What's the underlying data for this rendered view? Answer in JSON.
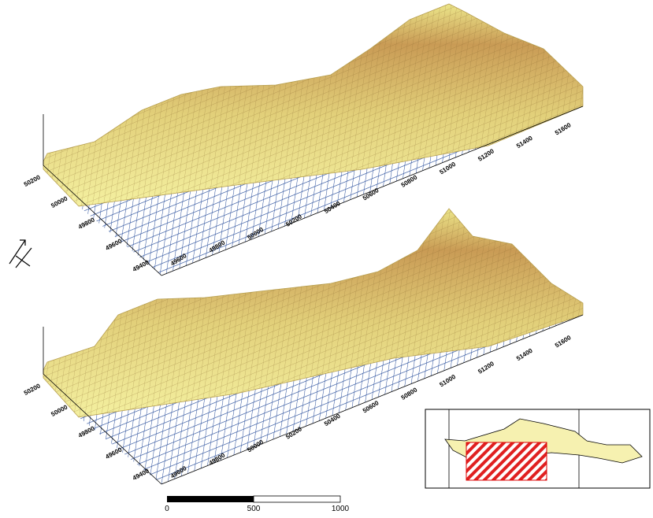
{
  "panels": [
    {
      "long_axis_labels": [
        49600,
        49800,
        50000,
        50200,
        50400,
        50600,
        50800,
        51000,
        51200,
        51400,
        51600
      ],
      "short_axis_labels": [
        50200,
        50000,
        49800,
        49600,
        49400
      ]
    },
    {
      "long_axis_labels": [
        49600,
        49800,
        50000,
        50200,
        50400,
        50600,
        50800,
        51000,
        51200,
        51400,
        51600
      ],
      "short_axis_labels": [
        50200,
        50000,
        49800,
        49600,
        49400
      ]
    }
  ],
  "scale_bar": {
    "labels": [
      0,
      500,
      1000
    ]
  }
}
